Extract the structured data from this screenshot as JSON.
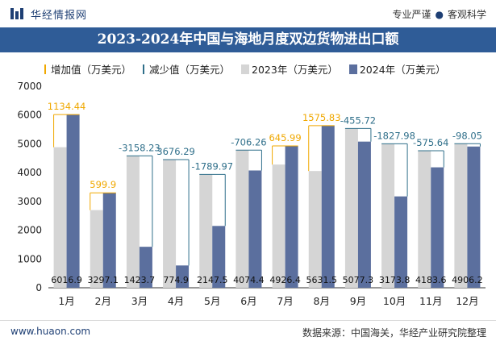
{
  "header": {
    "site_name": "华经情报网",
    "slogan_left": "专业严谨",
    "slogan_right": "客观科学"
  },
  "title": "2023-2024年中国与海地月度双边货物进出口额",
  "legend": {
    "increase": "增加值（万美元）",
    "decrease": "减少值（万美元）",
    "y2023": "2023年（万美元）",
    "y2024": "2024年（万美元）"
  },
  "footer": {
    "url": "www.huaon.com",
    "source": "数据来源：中国海关，华经产业研究院整理"
  },
  "colors": {
    "brand": "#2f5c97",
    "bar2023": "#d5d5d5",
    "bar2024": "#5b6f9e",
    "increase": "#f0a800",
    "decrease": "#2f6f8a"
  },
  "chart_data": {
    "type": "bar",
    "categories": [
      "1月",
      "2月",
      "3月",
      "4月",
      "5月",
      "6月",
      "7月",
      "8月",
      "9月",
      "10月",
      "11月",
      "12月"
    ],
    "ylim": [
      0,
      7000
    ],
    "yticks": [
      0,
      1000,
      2000,
      3000,
      4000,
      5000,
      6000,
      7000
    ],
    "series": [
      {
        "name": "2023年（万美元）",
        "values": [
          4882.5,
          2697.2,
          4581.9,
          4451.2,
          3937.5,
          4780.7,
          4280.4,
          4055.7,
          5533.0,
          5001.8,
          4759.2,
          5004.3
        ]
      },
      {
        "name": "2024年（万美元）",
        "values": [
          6016.9,
          3297.1,
          1423.7,
          774.9,
          2147.5,
          4074.4,
          4926.4,
          5631.5,
          5077.3,
          3173.8,
          4183.6,
          4906.2
        ]
      }
    ],
    "changes": [
      {
        "type": "increase",
        "label": "1134.44"
      },
      {
        "type": "increase",
        "label": "599.9"
      },
      {
        "type": "decrease",
        "label": "-3158.23"
      },
      {
        "type": "decrease",
        "label": "3676.29"
      },
      {
        "type": "decrease",
        "label": "-1789.97"
      },
      {
        "type": "decrease",
        "label": "-706.26"
      },
      {
        "type": "increase",
        "label": "645.99"
      },
      {
        "type": "increase",
        "label": "1575.83"
      },
      {
        "type": "decrease",
        "label": "-455.72"
      },
      {
        "type": "decrease",
        "label": "-1827.98"
      },
      {
        "type": "decrease",
        "label": "-575.64"
      },
      {
        "type": "decrease",
        "label": "-98.05"
      }
    ],
    "data_labels": [
      "6016.9",
      "3297.1",
      "1423.7",
      "774.9",
      "2147.5",
      "4074.4",
      "4926.4",
      "5631.5",
      "5077.3",
      "3173.8",
      "4183.6",
      "4906.2"
    ]
  }
}
